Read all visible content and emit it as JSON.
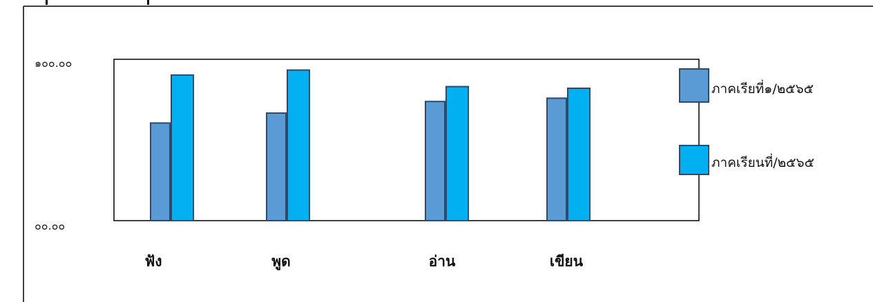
{
  "chart_data": {
    "type": "bar",
    "categories": [
      "ฟัง",
      "พูด",
      "อ่าน",
      "เขียน"
    ],
    "series": [
      {
        "name": "ภาคเรียที่๑/๒๕๖๕",
        "values": [
          59,
          65,
          72,
          74
        ],
        "color": "#5b9bd5"
      },
      {
        "name": "ภาคเรียนที่/๒๕๖๕",
        "values": [
          88,
          91,
          81,
          80
        ],
        "color": "#00b0f0"
      }
    ],
    "ylim": [
      0,
      100
    ],
    "ytick_labels": [
      "๐๐.๐๐",
      "๑๐๐.๐๐"
    ],
    "grid": false,
    "legend": "right",
    "border_color": "#2e4a6b"
  }
}
